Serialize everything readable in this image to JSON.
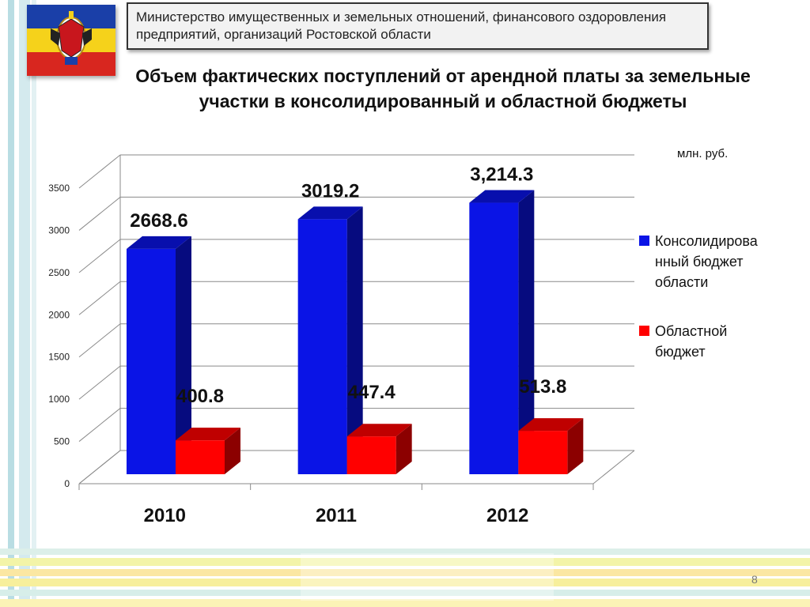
{
  "header": {
    "text": "Министерство имущественных и земельных отношений, финансового оздоровления предприятий, организаций Ростовской области"
  },
  "title": "Объем фактических поступлений от арендной платы за земельные участки в консолидированный и областной бюджеты",
  "unit_label": "млн. руб.",
  "page_number": "8",
  "colors": {
    "consolidated": "#0a14e6",
    "regional": "#ff0000"
  },
  "chart_data": {
    "type": "bar",
    "categories": [
      "2010",
      "2011",
      "2012"
    ],
    "series": [
      {
        "name": "Консолидированный бюджет области",
        "values": [
          2668.6,
          3019.2,
          3214.3
        ],
        "labels": [
          "2668.6",
          "3019.2",
          "3,214.3"
        ]
      },
      {
        "name": "Областной бюджет",
        "values": [
          400.8,
          447.4,
          513.8
        ],
        "labels": [
          "400.8",
          "447.4",
          "513.8"
        ]
      }
    ],
    "ylim": [
      0,
      3500
    ],
    "yticks": [
      "0",
      "500",
      "1000",
      "1500",
      "2000",
      "2500",
      "3000",
      "3500"
    ],
    "grid": true,
    "legend": "right",
    "legend_lines": [
      [
        "Консолидирова",
        "нный бюджет",
        "области"
      ],
      [
        "Областной",
        "бюджет"
      ]
    ]
  }
}
